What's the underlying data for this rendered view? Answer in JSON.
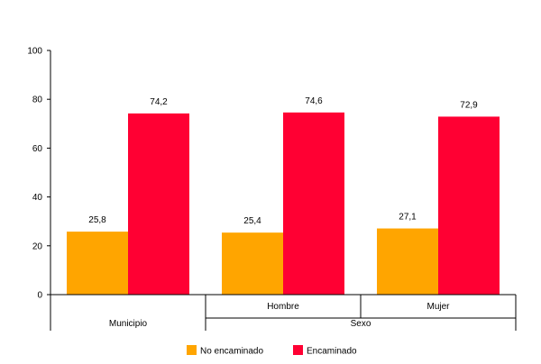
{
  "chart_data": {
    "type": "bar",
    "categories": [
      "Municipio",
      "Hombre",
      "Mujer"
    ],
    "groups": [
      {
        "label": "Municipio",
        "members": [
          "Municipio"
        ]
      },
      {
        "label": "Sexo",
        "members": [
          "Hombre",
          "Mujer"
        ]
      }
    ],
    "series": [
      {
        "name": "No encaminado",
        "color": "#FFA500",
        "values": [
          25.8,
          25.4,
          27.1
        ],
        "labels": [
          "25,8",
          "25,4",
          "27,1"
        ]
      },
      {
        "name": "Encaminado",
        "color": "#FF0033",
        "values": [
          74.2,
          74.6,
          72.9
        ],
        "labels": [
          "74,2",
          "74,6",
          "72,9"
        ]
      }
    ],
    "ylim": [
      0,
      100
    ],
    "yticks": [
      0,
      20,
      40,
      60,
      80,
      100
    ],
    "ytick_labels": [
      "0",
      "20",
      "40",
      "60",
      "80",
      "100"
    ],
    "grid": false,
    "legend": "bottom-center"
  }
}
